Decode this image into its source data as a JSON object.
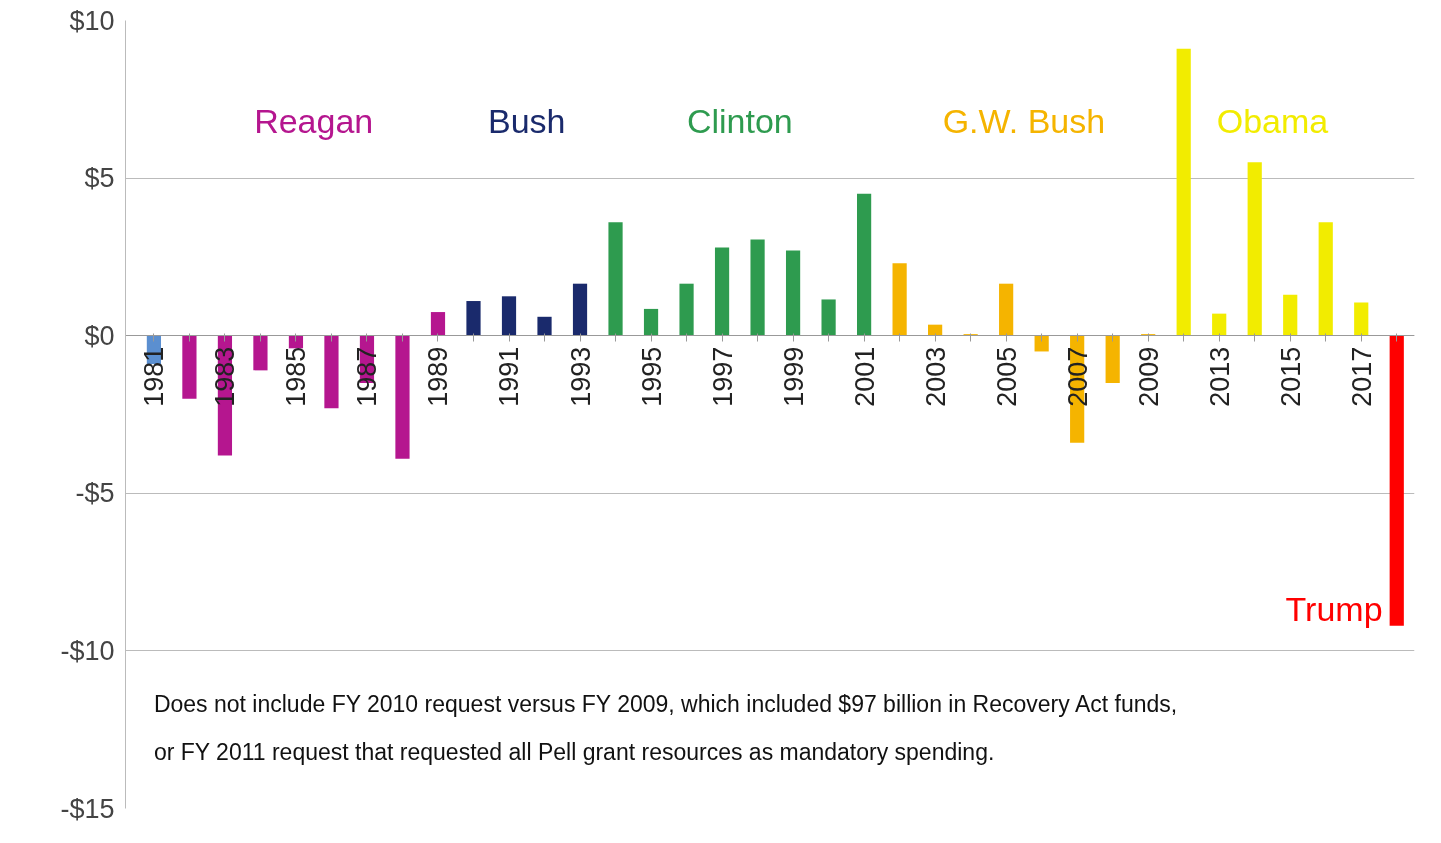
{
  "chart_data": {
    "type": "bar",
    "categories": [
      "1981",
      null,
      "1983",
      null,
      "1985",
      null,
      "1987",
      null,
      "1989",
      null,
      "1991",
      null,
      "1993",
      null,
      "1995",
      null,
      "1997",
      null,
      "1999",
      null,
      "2001",
      null,
      "2003",
      null,
      "2005",
      null,
      "2007",
      null,
      "2009",
      null,
      "2013",
      null,
      "2015",
      null,
      "2017",
      null
    ],
    "series": [
      {
        "color": "#5b8fd0",
        "values": [
          -0.9,
          null,
          null,
          null,
          null,
          null,
          null,
          null,
          null,
          null,
          null,
          null,
          null,
          null,
          null,
          null,
          null,
          null,
          null,
          null,
          null,
          null,
          null,
          null,
          null,
          null,
          null,
          null,
          null,
          null,
          null,
          null,
          null,
          null,
          null,
          null
        ]
      },
      {
        "name": "Reagan",
        "color": "#b5168f",
        "values": [
          null,
          -2.0,
          -3.8,
          -1.1,
          -0.4,
          -2.3,
          -1.5,
          -3.9,
          0.75,
          null,
          null,
          null,
          null,
          null,
          null,
          null,
          null,
          null,
          null,
          null,
          null,
          null,
          null,
          null,
          null,
          null,
          null,
          null,
          null,
          null,
          null,
          null,
          null,
          null,
          null,
          null
        ]
      },
      {
        "name": "Bush",
        "color": "#1a2a6c",
        "values": [
          null,
          null,
          null,
          null,
          null,
          null,
          null,
          null,
          null,
          1.1,
          1.25,
          0.6,
          1.65,
          null,
          null,
          null,
          null,
          null,
          null,
          null,
          null,
          null,
          null,
          null,
          null,
          null,
          null,
          null,
          null,
          null,
          null,
          null,
          null,
          null,
          null,
          null
        ]
      },
      {
        "name": "Clinton",
        "color": "#2e9b4f",
        "values": [
          null,
          null,
          null,
          null,
          null,
          null,
          null,
          null,
          null,
          null,
          null,
          null,
          null,
          3.6,
          0.85,
          1.65,
          2.8,
          3.05,
          2.7,
          1.15,
          4.5,
          null,
          null,
          null,
          null,
          null,
          null,
          null,
          null,
          null,
          null,
          null,
          null,
          null,
          null,
          null
        ]
      },
      {
        "name": "G.W. Bush",
        "color": "#f5b400",
        "values": [
          null,
          null,
          null,
          null,
          null,
          null,
          null,
          null,
          null,
          null,
          null,
          null,
          null,
          null,
          null,
          null,
          null,
          null,
          null,
          null,
          null,
          2.3,
          0.35,
          0.05,
          1.65,
          -0.5,
          -3.4,
          -1.5,
          0.05,
          null,
          null,
          null,
          null,
          null,
          null,
          null
        ]
      },
      {
        "name": "Obama",
        "color": "#f2ec00",
        "values": [
          null,
          null,
          null,
          null,
          null,
          null,
          null,
          null,
          null,
          null,
          null,
          null,
          null,
          null,
          null,
          null,
          null,
          null,
          null,
          null,
          null,
          null,
          null,
          null,
          null,
          null,
          null,
          null,
          null,
          9.1,
          0.7,
          5.5,
          1.3,
          3.6,
          1.05,
          null
        ]
      },
      {
        "name": "Trump",
        "color": "#ff0000",
        "values": [
          null,
          null,
          null,
          null,
          null,
          null,
          null,
          null,
          null,
          null,
          null,
          null,
          null,
          null,
          null,
          null,
          null,
          null,
          null,
          null,
          null,
          null,
          null,
          null,
          null,
          null,
          null,
          null,
          null,
          null,
          null,
          null,
          null,
          null,
          null,
          -9.2
        ]
      }
    ],
    "ylim": [
      -15,
      10
    ],
    "yticks": [
      {
        "value": 10,
        "label": "$10"
      },
      {
        "value": 5,
        "label": "$5"
      },
      {
        "value": 0,
        "label": "$0"
      },
      {
        "value": -5,
        "label": "-$5"
      },
      {
        "value": -10,
        "label": "-$10"
      },
      {
        "value": -15,
        "label": "-$15"
      }
    ],
    "grid": "y",
    "annotations": [
      "Does not include FY 2010 request versus FY 2009, which included $97 billion in Recovery Act funds, or FY 2011 request that requested all Pell grant resources as mandatory spending."
    ]
  }
}
